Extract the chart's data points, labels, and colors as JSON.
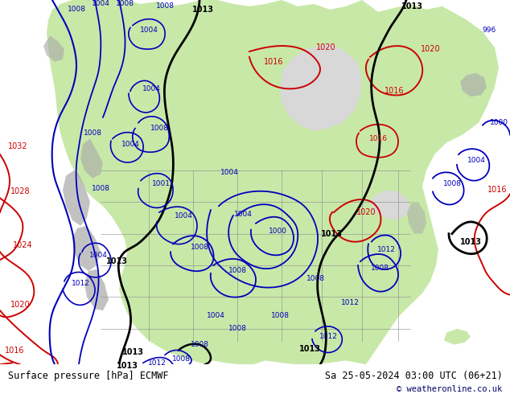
{
  "title_left": "Surface pressure [hPa] ECMWF",
  "title_right": "Sa 25-05-2024 03:00 UTC (06+21)",
  "copyright": "© weatheronline.co.uk",
  "bg_ocean_color": "#d8d8d8",
  "land_color": "#c8e8a8",
  "terrain_color": "#a8a8a8",
  "footer_bg": "#d0d0d0",
  "red_color": "#cc0000",
  "blue_color": "#0000bb",
  "black_color": "#000000",
  "figsize": [
    6.34,
    4.9
  ],
  "dpi": 100
}
